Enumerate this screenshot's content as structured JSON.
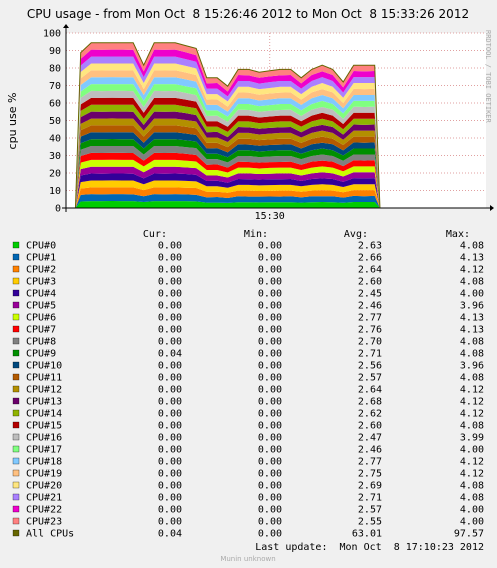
{
  "chart_data": {
    "type": "stacked-area",
    "title": "CPU usage - from Mon Oct  8 15:26:46 2012 to Mon Oct  8 15:33:26 2012",
    "y_label": "cpu use %",
    "side_text": "RRDTOOL / TOBI OETIKER",
    "x": [
      "15:26:55",
      "15:27:00",
      "15:27:10",
      "15:27:20",
      "15:27:30",
      "15:27:40",
      "15:27:50",
      "15:28:00",
      "15:28:10",
      "15:28:20",
      "15:28:30",
      "15:28:40",
      "15:28:50",
      "15:29:00",
      "15:29:10",
      "15:29:20",
      "15:29:30",
      "15:29:40",
      "15:29:50",
      "15:30:00",
      "15:30:10",
      "15:30:20",
      "15:30:30",
      "15:30:40",
      "15:30:50",
      "15:31:00",
      "15:31:10",
      "15:31:20",
      "15:31:30",
      "15:31:40",
      "15:31:45"
    ],
    "xlim": [
      "15:26:46",
      "15:33:26"
    ],
    "xticks": [
      "15:30"
    ],
    "ylim": [
      0,
      100
    ],
    "yticks": [
      0,
      10,
      20,
      30,
      40,
      50,
      60,
      70,
      80,
      90,
      100
    ],
    "grid": true,
    "columns": [
      "Cur:",
      "Min:",
      "Avg:",
      "Max:"
    ],
    "series": [
      {
        "name": "CPU#0",
        "color": "#00cc00",
        "stats": [
          "0.00",
          "0.00",
          "2.63",
          "4.08"
        ],
        "values": [
          0,
          3.7,
          3.9,
          3.9,
          4.0,
          3.9,
          3.9,
          3.4,
          3.9,
          3.9,
          3.9,
          3.9,
          3.8,
          3.1,
          3.1,
          2.9,
          3.3,
          3.3,
          3.2,
          3.3,
          3.3,
          3.3,
          3.1,
          3.3,
          3.4,
          3.3,
          3.0,
          3.4,
          3.4,
          3.4,
          0
        ]
      },
      {
        "name": "CPU#1",
        "color": "#0066b3",
        "stats": [
          "0.00",
          "0.00",
          "2.66",
          "4.13"
        ],
        "values": [
          0,
          3.8,
          4.0,
          3.9,
          3.9,
          4.0,
          3.9,
          3.3,
          4.0,
          3.9,
          4.0,
          3.9,
          3.7,
          3.0,
          3.2,
          2.8,
          3.4,
          3.2,
          3.3,
          3.3,
          3.2,
          3.4,
          3.0,
          3.4,
          3.3,
          3.4,
          2.9,
          3.5,
          3.3,
          3.5,
          0
        ]
      },
      {
        "name": "CPU#2",
        "color": "#ff8000",
        "stats": [
          "0.00",
          "0.00",
          "2.64",
          "4.12"
        ],
        "values": [
          0,
          3.6,
          3.9,
          4.0,
          3.9,
          3.9,
          4.0,
          3.5,
          3.9,
          4.0,
          3.9,
          3.8,
          3.9,
          3.2,
          3.0,
          3.0,
          3.2,
          3.4,
          3.2,
          3.2,
          3.4,
          3.2,
          3.2,
          3.2,
          3.5,
          3.2,
          3.1,
          3.3,
          3.5,
          3.3,
          0
        ]
      },
      {
        "name": "CPU#3",
        "color": "#ffcc00",
        "stats": [
          "0.00",
          "0.00",
          "2.60",
          "4.08"
        ],
        "values": [
          0,
          3.7,
          3.9,
          3.9,
          4.0,
          3.9,
          3.9,
          3.4,
          3.9,
          3.9,
          3.9,
          3.9,
          3.8,
          3.1,
          3.1,
          2.9,
          3.3,
          3.3,
          3.2,
          3.3,
          3.3,
          3.3,
          3.1,
          3.3,
          3.4,
          3.3,
          3.0,
          3.4,
          3.4,
          3.4,
          0
        ]
      },
      {
        "name": "CPU#4",
        "color": "#330099",
        "stats": [
          "0.00",
          "0.00",
          "2.45",
          "4.00"
        ],
        "values": [
          0,
          3.8,
          4.0,
          3.9,
          3.9,
          4.0,
          3.9,
          3.3,
          4.0,
          3.9,
          4.0,
          3.9,
          3.7,
          3.0,
          3.2,
          2.8,
          3.4,
          3.2,
          3.3,
          3.3,
          3.2,
          3.4,
          3.0,
          3.4,
          3.3,
          3.4,
          2.9,
          3.5,
          3.3,
          3.5,
          0
        ]
      },
      {
        "name": "CPU#5",
        "color": "#990099",
        "stats": [
          "0.00",
          "0.00",
          "2.46",
          "3.96"
        ],
        "values": [
          0,
          3.6,
          3.9,
          4.0,
          3.9,
          3.9,
          4.0,
          3.5,
          3.9,
          4.0,
          3.9,
          3.8,
          3.9,
          3.2,
          3.0,
          3.0,
          3.2,
          3.4,
          3.2,
          3.2,
          3.4,
          3.2,
          3.2,
          3.2,
          3.5,
          3.2,
          3.1,
          3.3,
          3.5,
          3.3,
          0
        ]
      },
      {
        "name": "CPU#6",
        "color": "#ccff00",
        "stats": [
          "0.00",
          "0.00",
          "2.77",
          "4.13"
        ],
        "values": [
          0,
          3.7,
          3.9,
          3.9,
          4.0,
          3.9,
          3.9,
          3.4,
          3.9,
          3.9,
          3.9,
          3.9,
          3.8,
          3.1,
          3.1,
          2.9,
          3.3,
          3.3,
          3.2,
          3.3,
          3.3,
          3.3,
          3.1,
          3.3,
          3.4,
          3.3,
          3.0,
          3.4,
          3.4,
          3.4,
          0
        ]
      },
      {
        "name": "CPU#7",
        "color": "#ff0000",
        "stats": [
          "0.00",
          "0.00",
          "2.76",
          "4.13"
        ],
        "values": [
          0,
          3.8,
          4.0,
          3.9,
          3.9,
          4.0,
          3.9,
          3.3,
          4.0,
          3.9,
          4.0,
          3.9,
          3.7,
          3.0,
          3.2,
          2.8,
          3.4,
          3.2,
          3.3,
          3.3,
          3.2,
          3.4,
          3.0,
          3.4,
          3.3,
          3.4,
          2.9,
          3.5,
          3.3,
          3.5,
          0
        ]
      },
      {
        "name": "CPU#8",
        "color": "#808080",
        "stats": [
          "0.00",
          "0.00",
          "2.70",
          "4.08"
        ],
        "values": [
          0,
          3.6,
          3.9,
          4.0,
          3.9,
          3.9,
          4.0,
          3.5,
          3.9,
          4.0,
          3.9,
          3.8,
          3.9,
          3.2,
          3.0,
          3.0,
          3.2,
          3.4,
          3.2,
          3.2,
          3.4,
          3.2,
          3.2,
          3.2,
          3.5,
          3.2,
          3.1,
          3.3,
          3.5,
          3.3,
          0
        ]
      },
      {
        "name": "CPU#9",
        "color": "#008f00",
        "stats": [
          "0.04",
          "0.00",
          "2.71",
          "4.08"
        ],
        "values": [
          0,
          3.7,
          3.9,
          3.9,
          4.0,
          3.9,
          3.9,
          3.4,
          3.9,
          3.9,
          3.9,
          3.9,
          3.8,
          3.1,
          3.1,
          2.9,
          3.3,
          3.3,
          3.2,
          3.3,
          3.3,
          3.3,
          3.1,
          3.3,
          3.4,
          3.3,
          3.0,
          3.4,
          3.4,
          3.4,
          0
        ]
      },
      {
        "name": "CPU#10",
        "color": "#00487d",
        "stats": [
          "0.00",
          "0.00",
          "2.56",
          "3.96"
        ],
        "values": [
          0,
          3.8,
          4.0,
          3.9,
          3.9,
          4.0,
          3.9,
          3.3,
          4.0,
          3.9,
          4.0,
          3.9,
          3.7,
          3.0,
          3.2,
          2.8,
          3.4,
          3.2,
          3.3,
          3.3,
          3.2,
          3.4,
          3.0,
          3.4,
          3.3,
          3.4,
          2.9,
          3.5,
          3.3,
          3.5,
          0
        ]
      },
      {
        "name": "CPU#11",
        "color": "#b35a00",
        "stats": [
          "0.00",
          "0.00",
          "2.57",
          "4.08"
        ],
        "values": [
          0,
          3.6,
          3.9,
          4.0,
          3.9,
          3.9,
          4.0,
          3.5,
          3.9,
          4.0,
          3.9,
          3.8,
          3.9,
          3.2,
          3.0,
          3.0,
          3.2,
          3.4,
          3.2,
          3.2,
          3.4,
          3.2,
          3.2,
          3.2,
          3.5,
          3.2,
          3.1,
          3.3,
          3.5,
          3.3,
          0
        ]
      },
      {
        "name": "CPU#12",
        "color": "#b38f00",
        "stats": [
          "0.00",
          "0.00",
          "2.64",
          "4.12"
        ],
        "values": [
          0,
          3.7,
          3.9,
          3.9,
          4.0,
          3.9,
          3.9,
          3.4,
          3.9,
          3.9,
          3.9,
          3.9,
          3.8,
          3.1,
          3.1,
          2.9,
          3.3,
          3.3,
          3.2,
          3.3,
          3.3,
          3.3,
          3.1,
          3.3,
          3.4,
          3.3,
          3.0,
          3.4,
          3.4,
          3.4,
          0
        ]
      },
      {
        "name": "CPU#13",
        "color": "#6b006b",
        "stats": [
          "0.00",
          "0.00",
          "2.68",
          "4.12"
        ],
        "values": [
          0,
          3.8,
          4.0,
          3.9,
          3.9,
          4.0,
          3.9,
          3.3,
          4.0,
          3.9,
          4.0,
          3.9,
          3.7,
          3.0,
          3.2,
          2.8,
          3.4,
          3.2,
          3.3,
          3.3,
          3.2,
          3.4,
          3.0,
          3.4,
          3.3,
          3.4,
          2.9,
          3.5,
          3.3,
          3.5,
          0
        ]
      },
      {
        "name": "CPU#14",
        "color": "#8fb300",
        "stats": [
          "0.00",
          "0.00",
          "2.62",
          "4.12"
        ],
        "values": [
          0,
          3.6,
          3.9,
          4.0,
          3.9,
          3.9,
          4.0,
          3.5,
          3.9,
          4.0,
          3.9,
          3.8,
          3.9,
          3.2,
          3.0,
          3.0,
          3.2,
          3.4,
          3.2,
          3.2,
          3.4,
          3.2,
          3.2,
          3.2,
          3.5,
          3.2,
          3.1,
          3.3,
          3.5,
          3.3,
          0
        ]
      },
      {
        "name": "CPU#15",
        "color": "#b30000",
        "stats": [
          "0.00",
          "0.00",
          "2.60",
          "4.08"
        ],
        "values": [
          0,
          3.7,
          3.9,
          3.9,
          4.0,
          3.9,
          3.9,
          3.4,
          3.9,
          3.9,
          3.9,
          3.9,
          3.8,
          3.1,
          3.1,
          2.9,
          3.3,
          3.3,
          3.2,
          3.3,
          3.3,
          3.3,
          3.1,
          3.3,
          3.4,
          3.3,
          3.0,
          3.4,
          3.4,
          3.4,
          0
        ]
      },
      {
        "name": "CPU#16",
        "color": "#bebebe",
        "stats": [
          "0.00",
          "0.00",
          "2.47",
          "3.99"
        ],
        "values": [
          0,
          3.8,
          4.0,
          3.9,
          3.9,
          4.0,
          3.9,
          3.3,
          4.0,
          3.9,
          4.0,
          3.9,
          3.7,
          3.0,
          3.2,
          2.8,
          3.4,
          3.2,
          3.3,
          3.3,
          3.2,
          3.4,
          3.0,
          3.4,
          3.3,
          3.4,
          2.9,
          3.5,
          3.3,
          3.5,
          0
        ]
      },
      {
        "name": "CPU#17",
        "color": "#80ff80",
        "stats": [
          "0.00",
          "0.00",
          "2.46",
          "4.00"
        ],
        "values": [
          0,
          3.6,
          3.9,
          4.0,
          3.9,
          3.9,
          4.0,
          3.5,
          3.9,
          4.0,
          3.9,
          3.8,
          3.9,
          3.2,
          3.0,
          3.0,
          3.2,
          3.4,
          3.2,
          3.2,
          3.4,
          3.2,
          3.2,
          3.2,
          3.5,
          3.2,
          3.1,
          3.3,
          3.5,
          3.3,
          0
        ]
      },
      {
        "name": "CPU#18",
        "color": "#80c9ff",
        "stats": [
          "0.00",
          "0.00",
          "2.77",
          "4.12"
        ],
        "values": [
          0,
          3.7,
          3.9,
          3.9,
          4.0,
          3.9,
          3.9,
          3.4,
          3.9,
          3.9,
          3.9,
          3.9,
          3.8,
          3.1,
          3.1,
          2.9,
          3.3,
          3.3,
          3.2,
          3.3,
          3.3,
          3.3,
          3.1,
          3.3,
          3.4,
          3.3,
          3.0,
          3.4,
          3.4,
          3.4,
          0
        ]
      },
      {
        "name": "CPU#19",
        "color": "#ffc080",
        "stats": [
          "0.00",
          "0.00",
          "2.75",
          "4.12"
        ],
        "values": [
          0,
          3.8,
          4.0,
          3.9,
          3.9,
          4.0,
          3.9,
          3.3,
          4.0,
          3.9,
          4.0,
          3.9,
          3.7,
          3.0,
          3.2,
          2.8,
          3.4,
          3.2,
          3.3,
          3.3,
          3.2,
          3.4,
          3.0,
          3.4,
          3.3,
          3.4,
          2.9,
          3.5,
          3.3,
          3.5,
          0
        ]
      },
      {
        "name": "CPU#20",
        "color": "#ffe680",
        "stats": [
          "0.00",
          "0.00",
          "2.69",
          "4.08"
        ],
        "values": [
          0,
          3.6,
          3.9,
          4.0,
          3.9,
          3.9,
          4.0,
          3.5,
          3.9,
          4.0,
          3.9,
          3.8,
          3.9,
          3.2,
          3.0,
          3.0,
          3.2,
          3.4,
          3.2,
          3.2,
          3.4,
          3.2,
          3.2,
          3.2,
          3.5,
          3.2,
          3.1,
          3.3,
          3.5,
          3.3,
          0
        ]
      },
      {
        "name": "CPU#21",
        "color": "#aa80ff",
        "stats": [
          "0.00",
          "0.00",
          "2.71",
          "4.08"
        ],
        "values": [
          0,
          3.7,
          3.9,
          3.9,
          4.0,
          3.9,
          3.9,
          3.4,
          3.9,
          3.9,
          3.9,
          3.9,
          3.8,
          3.1,
          3.1,
          2.9,
          3.3,
          3.3,
          3.2,
          3.3,
          3.3,
          3.3,
          3.1,
          3.3,
          3.4,
          3.3,
          3.0,
          3.4,
          3.4,
          3.4,
          0
        ]
      },
      {
        "name": "CPU#22",
        "color": "#ee00cc",
        "stats": [
          "0.00",
          "0.00",
          "2.57",
          "4.00"
        ],
        "values": [
          0,
          3.8,
          4.0,
          3.9,
          3.9,
          4.0,
          3.9,
          3.3,
          4.0,
          3.9,
          4.0,
          3.9,
          3.7,
          3.0,
          3.2,
          2.8,
          3.4,
          3.2,
          3.3,
          3.3,
          3.2,
          3.4,
          3.0,
          3.4,
          3.3,
          3.4,
          2.9,
          3.5,
          3.3,
          3.5,
          0
        ]
      },
      {
        "name": "CPU#23",
        "color": "#ff8080",
        "stats": [
          "0.00",
          "0.00",
          "2.55",
          "4.00"
        ],
        "values": [
          0,
          3.6,
          3.9,
          4.0,
          3.9,
          3.9,
          4.0,
          3.5,
          3.9,
          4.0,
          3.9,
          3.8,
          3.9,
          3.2,
          3.0,
          3.0,
          3.2,
          3.4,
          3.2,
          3.2,
          3.4,
          3.2,
          3.2,
          3.2,
          3.5,
          3.2,
          3.1,
          3.3,
          3.5,
          3.3,
          0
        ]
      }
    ],
    "total": {
      "name": "All CPUs",
      "color": "#666600",
      "stats": [
        "0.04",
        "0.00",
        "63.01",
        "97.57"
      ]
    },
    "last_update": "Last update:  Mon Oct  8 17:10:23 2012",
    "footer": "Munin unknown"
  }
}
